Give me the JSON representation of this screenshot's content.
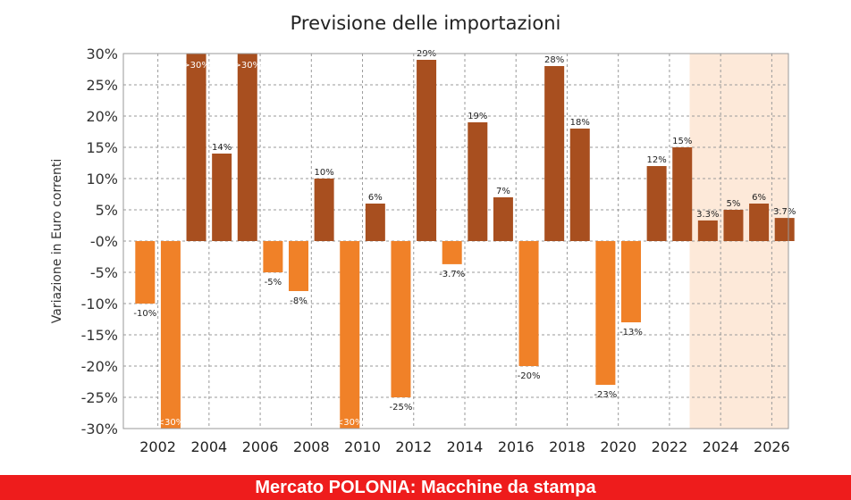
{
  "colors": {
    "positive": "#a84f1f",
    "negative": "#f08128",
    "forecast_band": "#fde9d9",
    "banner": "#ee1c1c"
  },
  "footer": {
    "text": "Mercato POLONIA: Macchine da stampa"
  },
  "chart_data": {
    "type": "bar",
    "title": "Previsione delle importazioni",
    "xlabel": "",
    "ylabel": "Variazione in Euro correnti",
    "ylim": [
      -30,
      30
    ],
    "y_ticks": [
      "30%",
      "25%",
      "20%",
      "15%",
      "10%",
      "5%",
      "-0%",
      "-5%",
      "-10%",
      "-15%",
      "-20%",
      "-25%",
      "-30%"
    ],
    "x_tick_labels": [
      "2002",
      "2004",
      "2006",
      "2008",
      "2010",
      "2012",
      "2014",
      "2016",
      "2018",
      "2020",
      "2022",
      "2024",
      "2026"
    ],
    "categories": [
      "2001",
      "2002",
      "2003",
      "2004",
      "2005",
      "2006",
      "2007",
      "2008",
      "2009",
      "2010",
      "2011",
      "2012",
      "2013",
      "2014",
      "2015",
      "2016",
      "2017",
      "2018",
      "2019",
      "2020",
      "2021",
      "2022",
      "2023",
      "2024",
      "2025",
      "2026"
    ],
    "values": [
      -10,
      -30,
      30,
      14,
      30,
      -5,
      -8,
      10,
      -30,
      6,
      -25,
      29,
      -3.7,
      19,
      7,
      -20,
      28,
      18,
      -23,
      -13,
      12,
      15,
      3.3,
      5,
      6,
      3.7
    ],
    "labels": [
      "-10%",
      "<30%",
      ">30%",
      "14%",
      ">30%",
      "-5%",
      "-8%",
      "10%",
      "<30%",
      "6%",
      "-25%",
      "29%",
      "-3.7%",
      "19%",
      "7%",
      "-20%",
      "28%",
      "18%",
      "-23%",
      "-13%",
      "12%",
      "15%",
      "3.3%",
      "5%",
      "6%",
      "3.7%"
    ],
    "forecast_start": "2023",
    "grid": true,
    "legend": "none"
  }
}
